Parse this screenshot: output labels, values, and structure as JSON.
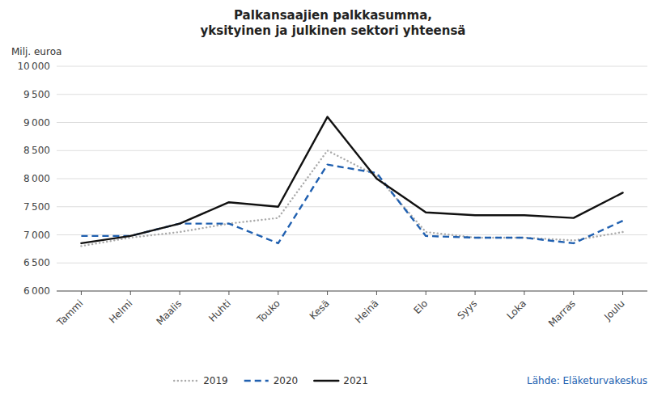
{
  "chart_data": {
    "type": "line",
    "title": "Palkansaajien palkkasumma,",
    "subtitle": "yksityinen ja julkinen sektori yhteensä",
    "ylabel": "Milj. euroa",
    "annotations": [
      {
        "text": "Lähde: Eläketurvakeskus",
        "color": "#2060b0"
      }
    ],
    "categories": [
      "Tammi",
      "Helmi",
      "Maalis",
      "Huhti",
      "Touko",
      "Kesä",
      "Heinä",
      "Elo",
      "Syys",
      "Loka",
      "Marras",
      "Joulu"
    ],
    "series": [
      {
        "name": "2019",
        "color": "#aaaaaa",
        "line_style": "dotted",
        "values": [
          6800,
          6950,
          7050,
          7200,
          7300,
          8500,
          8050,
          7050,
          6950,
          6950,
          6900,
          7050
        ]
      },
      {
        "name": "2020",
        "color": "#2060b0",
        "line_style": "dashed",
        "values": [
          6980,
          6980,
          7200,
          7200,
          6850,
          8250,
          8100,
          6980,
          6950,
          6950,
          6850,
          7250
        ]
      },
      {
        "name": "2021",
        "color": "#111111",
        "line_style": "solid",
        "values": [
          6850,
          6980,
          7200,
          7580,
          7500,
          9100,
          8000,
          7400,
          7350,
          7350,
          7300,
          7750
        ]
      }
    ],
    "ylim": [
      6000,
      10000
    ],
    "yticks": [
      {
        "value": 6000,
        "label": "6 000"
      },
      {
        "value": 6500,
        "label": "6 500"
      },
      {
        "value": 7000,
        "label": "7 000"
      },
      {
        "value": 7500,
        "label": "7 500"
      },
      {
        "value": 8000,
        "label": "8 000"
      },
      {
        "value": 8500,
        "label": "8 500"
      },
      {
        "value": 9000,
        "label": "9 000"
      },
      {
        "value": 9500,
        "label": "9 500"
      },
      {
        "value": 10000,
        "label": "10 000"
      }
    ],
    "grid": true,
    "legend": "bottom"
  }
}
